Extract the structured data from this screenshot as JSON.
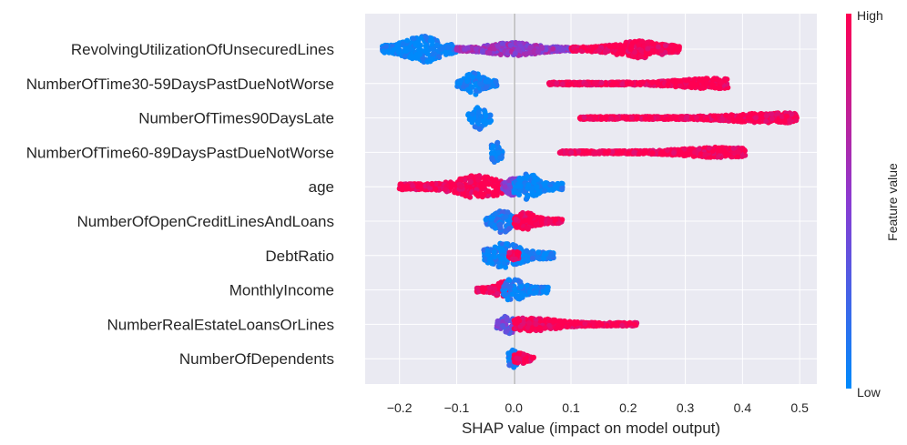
{
  "colors": {
    "low": "#008afb",
    "high": "#ff0052",
    "plot_bg": "#eaeaf2",
    "grid": "#ffffff",
    "zero_line": "#999999"
  },
  "chart_data": {
    "type": "scatter",
    "subtype": "shap_beeswarm",
    "title": "",
    "xlabel": "SHAP value (impact on model output)",
    "ylabel": "",
    "xlim": [
      -0.26,
      0.53
    ],
    "xticks": [
      -0.2,
      -0.1,
      0.0,
      0.1,
      0.2,
      0.3,
      0.4,
      0.5
    ],
    "xtick_labels": [
      "−0.2",
      "−0.1",
      "0.0",
      "0.1",
      "0.2",
      "0.3",
      "0.4",
      "0.5"
    ],
    "grid": true,
    "colorbar": {
      "title": "Feature value",
      "high_label": "High",
      "low_label": "Low"
    },
    "features": [
      {
        "name": "RevolvingUtilizationOfUnsecuredLines",
        "clusters": [
          {
            "from": -0.23,
            "to": -0.1,
            "center": -0.16,
            "color": 0.0,
            "spread": 1.0
          },
          {
            "from": -0.1,
            "to": 0.1,
            "center": 0.0,
            "color": 0.55,
            "spread": 0.45
          },
          {
            "from": 0.1,
            "to": 0.29,
            "center": 0.22,
            "color": 1.0,
            "spread": 0.6
          }
        ]
      },
      {
        "name": "NumberOfTime30-59DaysPastDueNotWorse",
        "clusters": [
          {
            "from": -0.1,
            "to": -0.03,
            "center": -0.07,
            "color": 0.0,
            "spread": 0.8
          },
          {
            "from": 0.06,
            "to": 0.375,
            "center": 0.35,
            "color": 1.0,
            "spread": 0.35
          }
        ]
      },
      {
        "name": "NumberOfTimes90DaysLate",
        "clusters": [
          {
            "from": -0.08,
            "to": -0.04,
            "center": -0.06,
            "color": 0.0,
            "spread": 0.8
          },
          {
            "from": 0.115,
            "to": 0.495,
            "center": 0.46,
            "color": 1.0,
            "spread": 0.35
          }
        ]
      },
      {
        "name": "NumberOfTime60-89DaysPastDueNotWorse",
        "clusters": [
          {
            "from": -0.04,
            "to": -0.02,
            "center": -0.03,
            "color": 0.0,
            "spread": 0.8
          },
          {
            "from": 0.08,
            "to": 0.405,
            "center": 0.36,
            "color": 1.0,
            "spread": 0.35
          }
        ]
      },
      {
        "name": "age",
        "clusters": [
          {
            "from": -0.2,
            "to": -0.02,
            "center": -0.06,
            "color": 1.0,
            "spread": 0.8
          },
          {
            "from": -0.02,
            "to": 0.02,
            "center": 0.0,
            "color": 0.5,
            "spread": 0.7
          },
          {
            "from": 0.0,
            "to": 0.085,
            "center": 0.025,
            "color": 0.0,
            "spread": 0.9
          }
        ]
      },
      {
        "name": "NumberOfOpenCreditLinesAndLoans",
        "clusters": [
          {
            "from": -0.05,
            "to": 0.01,
            "center": -0.02,
            "color": 0.1,
            "spread": 0.8
          },
          {
            "from": 0.0,
            "to": 0.085,
            "center": 0.02,
            "color": 1.0,
            "spread": 0.6
          }
        ]
      },
      {
        "name": "DebtRatio",
        "clusters": [
          {
            "from": -0.055,
            "to": 0.07,
            "center": -0.015,
            "color": 0.05,
            "spread": 0.9
          },
          {
            "from": -0.01,
            "to": 0.01,
            "center": 0.0,
            "color": 1.0,
            "spread": 0.3
          }
        ]
      },
      {
        "name": "MonthlyIncome",
        "clusters": [
          {
            "from": -0.065,
            "to": -0.01,
            "center": -0.02,
            "color": 1.0,
            "spread": 0.6
          },
          {
            "from": -0.02,
            "to": 0.06,
            "center": 0.0,
            "color": 0.05,
            "spread": 0.8
          }
        ]
      },
      {
        "name": "NumberRealEstateLoansOrLines",
        "clusters": [
          {
            "from": -0.03,
            "to": 0.01,
            "center": -0.01,
            "color": 0.4,
            "spread": 0.7
          },
          {
            "from": 0.0,
            "to": 0.215,
            "center": 0.03,
            "color": 1.0,
            "spread": 0.45
          }
        ]
      },
      {
        "name": "NumberOfDependents",
        "clusters": [
          {
            "from": -0.01,
            "to": 0.008,
            "center": 0.0,
            "color": 0.1,
            "spread": 0.6
          },
          {
            "from": 0.0,
            "to": 0.035,
            "center": 0.01,
            "color": 1.0,
            "spread": 0.4
          }
        ]
      }
    ]
  }
}
